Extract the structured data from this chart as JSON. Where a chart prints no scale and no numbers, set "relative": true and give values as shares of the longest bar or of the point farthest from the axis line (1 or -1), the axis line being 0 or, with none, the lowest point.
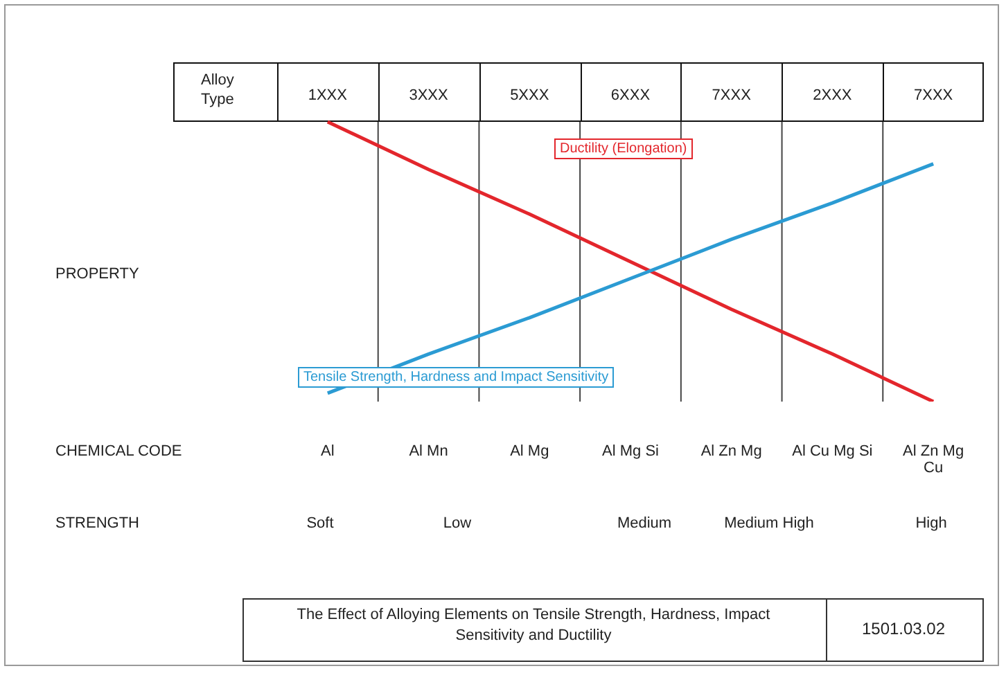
{
  "chart_data": {
    "type": "line",
    "title": "The Effect of Alloying Elements on Tensile Strength, Hardness, Impact Sensitivity and Ductility",
    "xlabel": "Alloy Type",
    "categories": [
      "1XXX",
      "3XXX",
      "5XXX",
      "6XXX",
      "7XXX",
      "2XXX",
      "7XXX"
    ],
    "relative": true,
    "series": [
      {
        "name": "Ductility (Elongation)",
        "color": "#e3262c",
        "values": [
          1,
          0.83,
          0.67,
          0.5,
          0.33,
          0.17,
          0
        ]
      },
      {
        "name": "Tensile Strength, Hardness and Impact Sensitivity",
        "color": "#2b9bd3",
        "values": [
          0.03,
          0.17,
          0.3,
          0.44,
          0.58,
          0.71,
          0.85
        ]
      }
    ],
    "grid": "x",
    "legend": false,
    "marker": "none",
    "line_style": "solid",
    "annotations": [
      "PROPERTY",
      "CHEMICAL CODE",
      "Al",
      "Al Mn",
      "Al Mg",
      "Al Mg Si",
      "Al Zn Mg",
      "Al Cu Mg Si",
      "Al Zn Mg Cu",
      "STRENGTH",
      "Soft",
      "Low",
      "Medium",
      "Medium High",
      "High",
      "1501.03.02"
    ]
  }
}
